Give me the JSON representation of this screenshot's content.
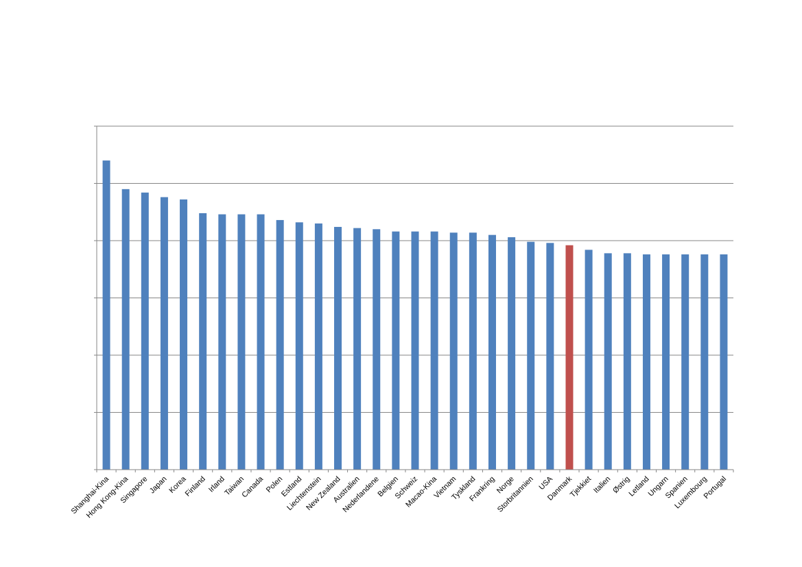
{
  "chart_data": {
    "type": "bar",
    "categories": [
      "Shanghai-Kina",
      "Hong Kong-Kina",
      "Singapore",
      "Japan",
      "Korea",
      "Finland",
      "Irland",
      "Taiwan",
      "Canada",
      "Polen",
      "Estland",
      "Liechtenstein",
      "New Zealand",
      "Australien",
      "Nederlandene",
      "Belgien",
      "Schweiz",
      "Macao-Kina",
      "Vietnam",
      "Tyskland",
      "Frankring",
      "Norge",
      "Storbritannien",
      "USA",
      "Danmark",
      "Tjekkiet",
      "Italien",
      "Østrig",
      "Letland",
      "Ungarn",
      "Spanien",
      "Luxembourg",
      "Portugal"
    ],
    "values": [
      570,
      545,
      542,
      538,
      536,
      524,
      523,
      523,
      523,
      518,
      516,
      515,
      512,
      511,
      510,
      508,
      508,
      508,
      507,
      507,
      505,
      503,
      499,
      498,
      496,
      492,
      489,
      489,
      488,
      488,
      488,
      488,
      488
    ],
    "ylim": [
      300,
      600
    ],
    "y_gridlines": [
      300,
      350,
      400,
      450,
      500,
      550,
      600
    ],
    "grid": true,
    "highlight": "Danmark",
    "colors": {
      "bar": "#4F81BD",
      "highlight": "#C0504D",
      "grid": "#868686",
      "axis": "#868686"
    }
  }
}
